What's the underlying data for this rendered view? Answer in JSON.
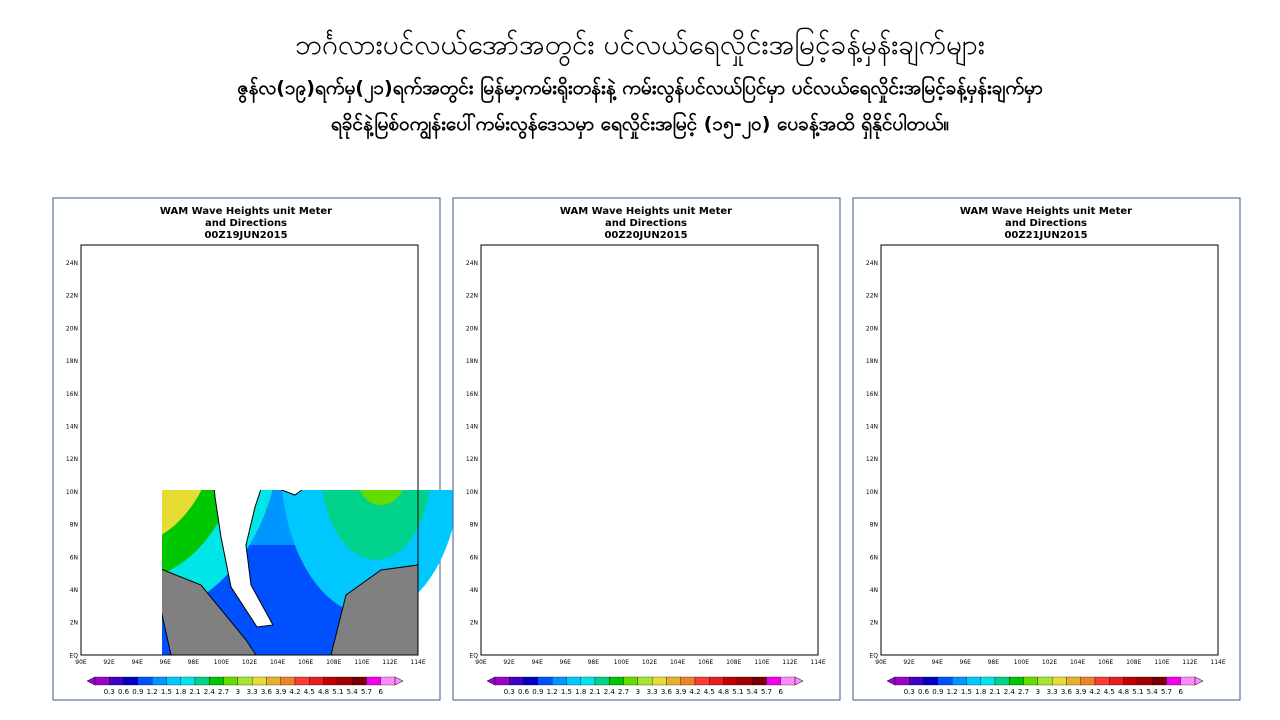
{
  "header": {
    "title": "ဘင်္ဂလားပင်လယ်အော်အတွင်း ပင်လယ်ရေလှိုင်းအမြင့်ခန့်မှန်းချက်များ",
    "subtitle_lines": [
      "ဇွန်လ(၁၉)ရက်မှ(၂၁)ရက်အတွင်း မြန်မာ့ကမ်းရိုးတန်းနဲ့ ကမ်းလွန်ပင်လယ်ပြင်မှာ ပင်လယ်ရေလှိုင်းအမြင့်ခန့်မှန်းချက်မှာ",
      "ရခိုင်နဲ့မြစ်ဝကျွန်းပေါ်ကမ်းလွန်ဒေသမှာ ရေလှိုင်းအမြင့် (၁၅-၂၀) ပေခန့်အထိ ရှိနိုင်ပါတယ်။"
    ]
  },
  "maps": [
    {
      "title": "WAM Wave Heights unit Meter",
      "subtitle": "and Directions",
      "date": "00Z19JUN2015"
    },
    {
      "title": "WAM Wave Heights unit Meter",
      "subtitle": "and Directions",
      "date": "00Z20JUN2015"
    },
    {
      "title": "WAM Wave Heights unit Meter",
      "subtitle": "and Directions",
      "date": "00Z21JUN2015"
    }
  ],
  "map_axes": {
    "lat_labels": [
      "24N",
      "22N",
      "20N",
      "18N",
      "16N",
      "14N",
      "12N",
      "10N",
      "8N",
      "6N",
      "4N",
      "2N",
      "EQ"
    ],
    "lon_labels": [
      "90E",
      "92E",
      "94E",
      "96E",
      "98E",
      "100E",
      "102E",
      "104E",
      "106E",
      "108E",
      "110E",
      "112E",
      "114E"
    ],
    "colorbar_labels": [
      0.3,
      0.6,
      0.9,
      1.2,
      1.5,
      1.8,
      2.1,
      2.4,
      2.7,
      3,
      3.3,
      3.6,
      3.9,
      4.2,
      4.5,
      4.8,
      5.1,
      5.4,
      5.7,
      6
    ]
  }
}
